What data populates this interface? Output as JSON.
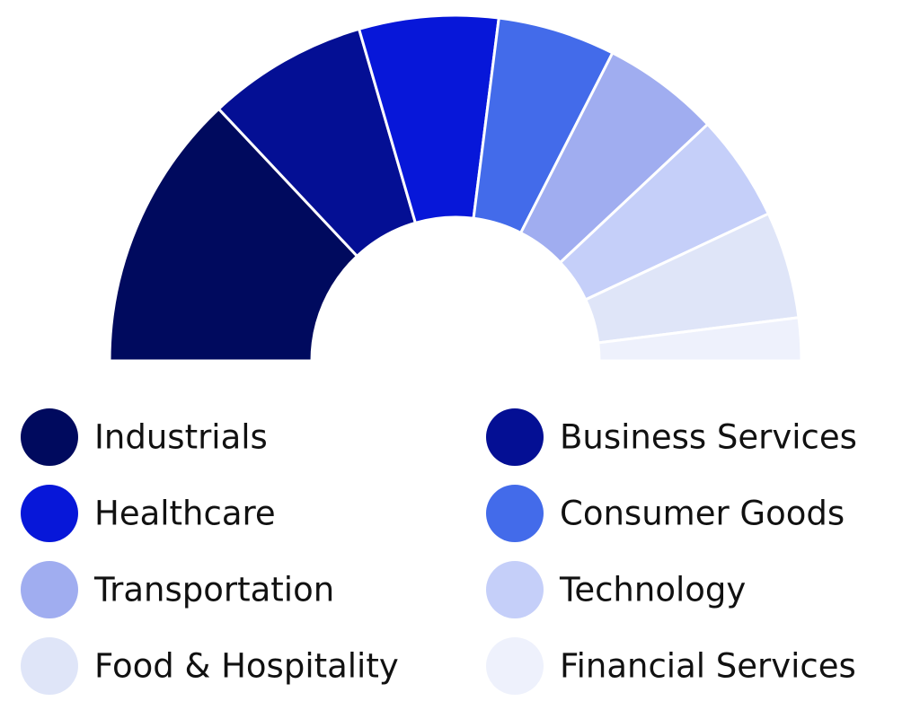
{
  "chart_data": {
    "type": "donut",
    "categories": [
      "Industrials",
      "Business Services",
      "Healthcare",
      "Consumer Goods",
      "Transportation",
      "Technology",
      "Food & Hospitality",
      "Financial Services"
    ],
    "values": [
      26,
      15,
      13,
      11,
      11,
      10,
      10,
      4
    ],
    "colors": [
      "#000a5e",
      "#040f94",
      "#0717d9",
      "#436bea",
      "#a0adf0",
      "#c5cff9",
      "#dfe5f8",
      "#eef1fc"
    ]
  }
}
